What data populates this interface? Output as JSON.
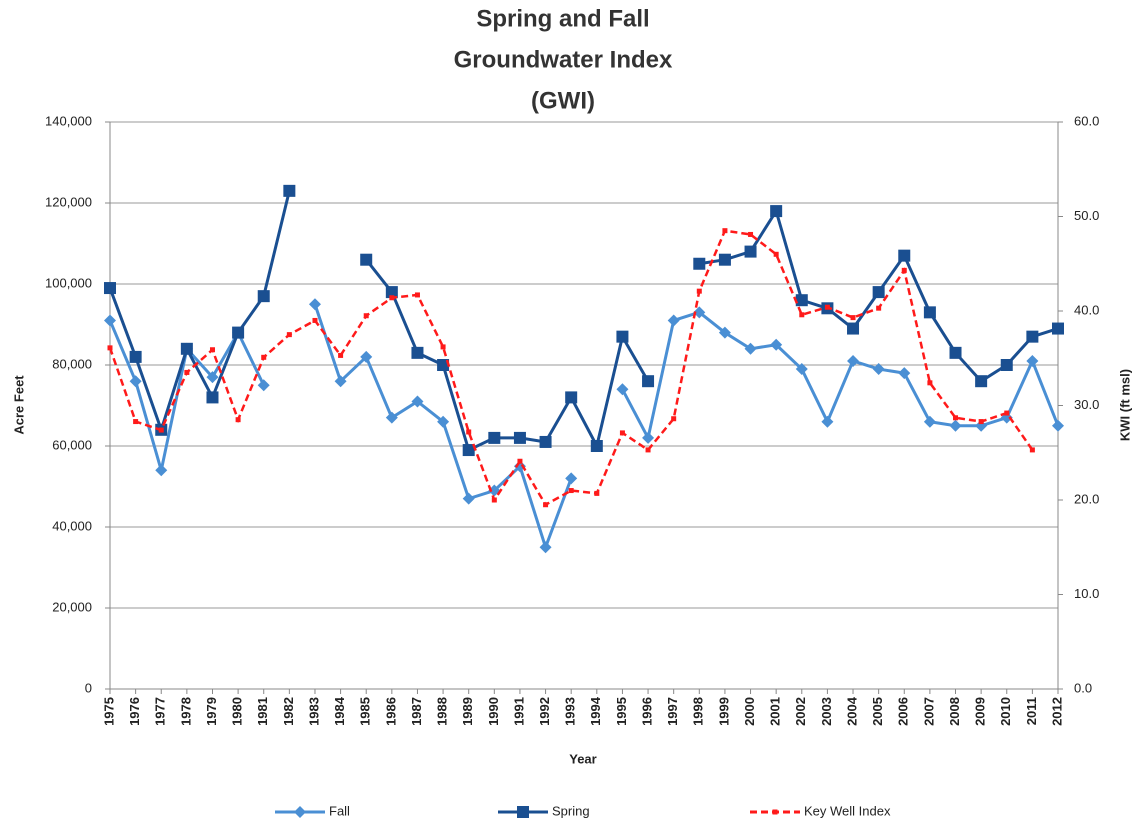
{
  "chart_data": {
    "type": "line",
    "title": [
      "Spring and Fall",
      "Groundwater Index",
      "(GWI)"
    ],
    "x_label": "Year",
    "y_label": "Acre Feet",
    "y2_label": "KWI (ft msl)",
    "categories": [
      "1975",
      "1976",
      "1977",
      "1978",
      "1979",
      "1980",
      "1981",
      "1982",
      "1983",
      "1984",
      "1985",
      "1986",
      "1987",
      "1988",
      "1989",
      "1990",
      "1991",
      "1992",
      "1993",
      "1994",
      "1995",
      "1996",
      "1997",
      "1998",
      "1999",
      "2000",
      "2001",
      "2002",
      "2003",
      "2004",
      "2005",
      "2006",
      "2007",
      "2008",
      "2009",
      "2010",
      "2011",
      "2012"
    ],
    "ylim": [
      0,
      140000
    ],
    "yticks": [
      0,
      {
        "value": 20000,
        "label": "20,000"
      },
      {
        "value": 40000,
        "label": "40,000"
      },
      {
        "value": 60000,
        "label": "60,000"
      },
      {
        "value": 80000,
        "label": "80,000"
      },
      {
        "value": 100000,
        "label": "100,000"
      },
      {
        "value": 120000,
        "label": "120,000"
      },
      {
        "value": 140000,
        "label": "140,000"
      }
    ],
    "y2lim": [
      0,
      60
    ],
    "y2ticks": [
      {
        "value": 0,
        "label": "0.0"
      },
      {
        "value": 10,
        "label": "10.0"
      },
      {
        "value": 20,
        "label": "20.0"
      },
      {
        "value": 30,
        "label": "30.0"
      },
      {
        "value": 40,
        "label": "40.0"
      },
      {
        "value": 50,
        "label": "50.0"
      },
      {
        "value": 60,
        "label": "60.0"
      }
    ],
    "grid": true,
    "legend": "bottom",
    "series": [
      {
        "name": "Fall",
        "color": "#4a8fd4",
        "marker": "diamond",
        "dashed": false,
        "values": [
          91000,
          76000,
          54000,
          84000,
          77000,
          88000,
          75000,
          null,
          95000,
          76000,
          82000,
          67000,
          71000,
          66000,
          47000,
          49000,
          55000,
          35000,
          52000,
          null,
          74000,
          62000,
          91000,
          93000,
          88000,
          84000,
          85000,
          79000,
          66000,
          81000,
          79000,
          78000,
          66000,
          65000,
          65000,
          67000,
          81000,
          65000
        ]
      },
      {
        "name": "Spring",
        "color": "#1a4f91",
        "marker": "square",
        "dashed": false,
        "values": [
          99000,
          82000,
          64000,
          84000,
          72000,
          88000,
          97000,
          123000,
          null,
          null,
          106000,
          98000,
          83000,
          80000,
          59000,
          62000,
          62000,
          61000,
          72000,
          60000,
          87000,
          76000,
          null,
          105000,
          106000,
          108000,
          118000,
          96000,
          94000,
          89000,
          98000,
          107000,
          93000,
          83000,
          76000,
          80000,
          87000,
          89000
        ]
      },
      {
        "name": "Key Well Index",
        "color": "#ff1a1a",
        "marker": "small-square",
        "dashed": true,
        "axis": "y2",
        "values": [
          36.1,
          28.3,
          27.4,
          33.5,
          35.9,
          28.5,
          35.1,
          37.5,
          39.0,
          35.3,
          39.5,
          41.4,
          41.7,
          36.2,
          27.2,
          20.0,
          24.1,
          19.5,
          21.0,
          20.7,
          27.1,
          25.3,
          28.6,
          42.1,
          48.5,
          48.1,
          46.0,
          39.6,
          40.4,
          39.3,
          40.3,
          44.3,
          32.4,
          28.7,
          28.3,
          29.2,
          25.3,
          null
        ]
      }
    ]
  }
}
